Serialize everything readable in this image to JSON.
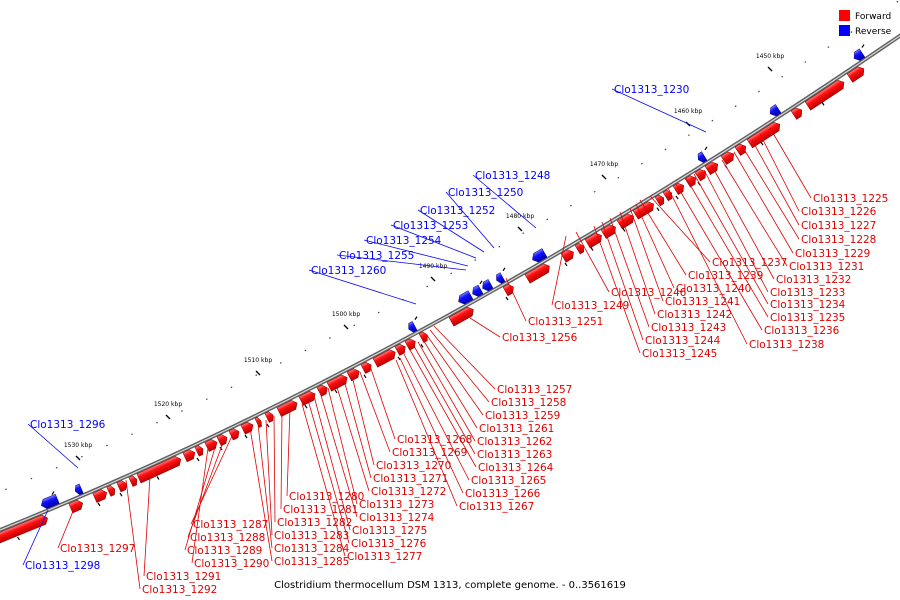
{
  "legend": {
    "forward_label": "Forward",
    "reverse_label": "Reverse",
    "forward_color": "#ff0000",
    "reverse_color": "#0000ff"
  },
  "caption": "Clostridium thermocellum DSM 1313, complete genome. - 0..3561619",
  "ticks": [
    "1450 kbp",
    "1460 kbp",
    "1470 kbp",
    "1480 kbp",
    "1490 kbp",
    "1500 kbp",
    "1510 kbp",
    "1520 kbp",
    "1530 kbp"
  ],
  "labels_reverse": [
    "Clo1313_1230",
    "Clo1313_1248",
    "Clo1313_1250",
    "Clo1313_1252",
    "Clo1313_1253",
    "Clo1313_1254",
    "Clo1313_1255",
    "Clo1313_1260",
    "Clo1313_1296",
    "Clo1313_1298"
  ],
  "labels_forward": [
    "Clo1313_1225",
    "Clo1313_1226",
    "Clo1313_1227",
    "Clo1313_1228",
    "Clo1313_1229",
    "Clo1313_1231",
    "Clo1313_1232",
    "Clo1313_1233",
    "Clo1313_1234",
    "Clo1313_1235",
    "Clo1313_1236",
    "Clo1313_1237",
    "Clo1313_1238",
    "Clo1313_1239",
    "Clo1313_1240",
    "Clo1313_1241",
    "Clo1313_1242",
    "Clo1313_1243",
    "Clo1313_1244",
    "Clo1313_1245",
    "Clo1313_1246",
    "Clo1313_1249",
    "Clo1313_1251",
    "Clo1313_1256",
    "Clo1313_1257",
    "Clo1313_1258",
    "Clo1313_1259",
    "Clo1313_1261",
    "Clo1313_1262",
    "Clo1313_1263",
    "Clo1313_1264",
    "Clo1313_1265",
    "Clo1313_1266",
    "Clo1313_1267",
    "Clo1313_1268",
    "Clo1313_1269",
    "Clo1313_1270",
    "Clo1313_1271",
    "Clo1313_1272",
    "Clo1313_1273",
    "Clo1313_1274",
    "Clo1313_1275",
    "Clo1313_1276",
    "Clo1313_1277",
    "Clo1313_1280",
    "Clo1313_1281",
    "Clo1313_1282",
    "Clo1313_1283",
    "Clo1313_1284",
    "Clo1313_1285",
    "Clo1313_1287",
    "Clo1313_1288",
    "Clo1313_1289",
    "Clo1313_1290",
    "Clo1313_1291",
    "Clo1313_1292",
    "Clo1313_1297"
  ]
}
